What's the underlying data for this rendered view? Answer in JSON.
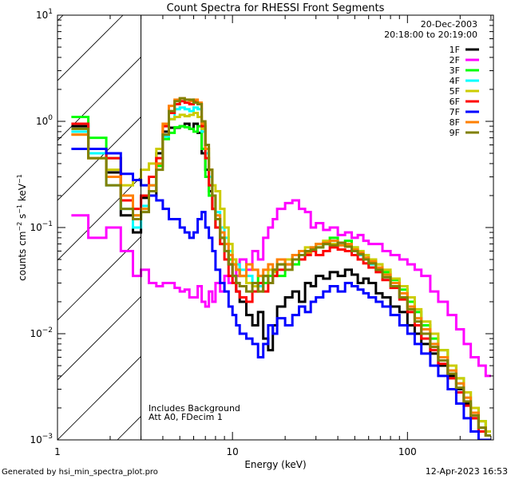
{
  "footer": {
    "generated_by": "Generated by hsi_min_spectra_plot.pro",
    "timestamp": "12-Apr-2023 16:53"
  },
  "chart_data": {
    "type": "line",
    "title": "Count Spectra for RHESSI Front Segments",
    "xlabel": "Energy (keV)",
    "ylabel": "counts cm^-2 s^-1 keV^-1",
    "xscale": "log",
    "yscale": "log",
    "xlim": [
      1,
      310
    ],
    "ylim": [
      0.001,
      10
    ],
    "x_tick_labels": [
      "1",
      "10",
      "100"
    ],
    "x_tick_values": [
      1,
      10,
      100
    ],
    "y_tick_labels": [
      {
        "base": "10",
        "exp": "1",
        "value": 10
      },
      {
        "base": "10",
        "exp": "0",
        "value": 1
      },
      {
        "base": "10",
        "exp": "−1",
        "value": 0.1
      },
      {
        "base": "10",
        "exp": "−2",
        "value": 0.01
      },
      {
        "base": "10",
        "exp": "−3",
        "value": 0.001
      }
    ],
    "ylabel_parts": {
      "a": "counts cm",
      "e1": "−2",
      "b": " s",
      "e2": "−1",
      "c": " keV",
      "e3": "−1"
    },
    "hatched_region": {
      "x_from": 1,
      "x_to": 3.0,
      "label": "excluded low-energy region"
    },
    "legend_placement": "top-right",
    "legend_header": [
      "20-Dec-2003",
      "20:18:00 to 20:19:00"
    ],
    "annotations": [
      "Includes Background",
      "Att A0, FDecim 1"
    ],
    "energy_edges": [
      1.2,
      1.5,
      1.9,
      2.3,
      2.7,
      3.0,
      3.33,
      3.67,
      4.0,
      4.33,
      4.67,
      5.0,
      5.33,
      5.67,
      6.0,
      6.33,
      6.67,
      7.0,
      7.33,
      7.67,
      8.0,
      8.5,
      9.0,
      9.5,
      10,
      10.5,
      11,
      12,
      13,
      14,
      15,
      16,
      17,
      18,
      20,
      22,
      24,
      26,
      28,
      30,
      33,
      36,
      40,
      44,
      48,
      52,
      56,
      60,
      66,
      72,
      80,
      90,
      100,
      110,
      120,
      135,
      150,
      170,
      190,
      210,
      230,
      255,
      280,
      300
    ],
    "series": [
      {
        "name": "1F",
        "color": "#000000",
        "values": [
          0.9,
          0.55,
          0.33,
          0.13,
          0.09,
          0.19,
          0.2,
          0.5,
          0.8,
          0.87,
          0.87,
          0.9,
          0.95,
          0.85,
          0.95,
          0.78,
          0.5,
          0.35,
          0.22,
          0.15,
          0.1,
          0.08,
          0.06,
          0.045,
          0.035,
          0.025,
          0.02,
          0.015,
          0.012,
          0.016,
          0.009,
          0.007,
          0.012,
          0.018,
          0.022,
          0.025,
          0.02,
          0.03,
          0.028,
          0.035,
          0.033,
          0.038,
          0.035,
          0.04,
          0.036,
          0.03,
          0.033,
          0.03,
          0.024,
          0.022,
          0.018,
          0.016,
          0.012,
          0.01,
          0.008,
          0.0065,
          0.005,
          0.004,
          0.003,
          0.0022,
          0.0016,
          0.0012,
          0.0012
        ]
      },
      {
        "name": "2F",
        "color": "#ff00ff",
        "values": [
          0.13,
          0.08,
          0.1,
          0.06,
          0.035,
          0.04,
          0.03,
          0.028,
          0.03,
          0.03,
          0.027,
          0.025,
          0.026,
          0.022,
          0.022,
          0.028,
          0.02,
          0.018,
          0.025,
          0.02,
          0.03,
          0.025,
          0.035,
          0.03,
          0.045,
          0.035,
          0.05,
          0.04,
          0.06,
          0.05,
          0.08,
          0.1,
          0.12,
          0.15,
          0.17,
          0.18,
          0.15,
          0.14,
          0.1,
          0.11,
          0.095,
          0.1,
          0.085,
          0.09,
          0.08,
          0.085,
          0.075,
          0.07,
          0.07,
          0.06,
          0.055,
          0.05,
          0.045,
          0.04,
          0.035,
          0.025,
          0.02,
          0.015,
          0.011,
          0.008,
          0.006,
          0.005,
          0.004
        ]
      },
      {
        "name": "3F",
        "color": "#00ff00",
        "values": [
          1.1,
          0.7,
          0.45,
          0.2,
          0.13,
          0.15,
          0.25,
          0.38,
          0.68,
          0.78,
          0.88,
          0.9,
          0.88,
          0.85,
          0.8,
          0.9,
          0.55,
          0.3,
          0.2,
          0.15,
          0.1,
          0.07,
          0.06,
          0.05,
          0.045,
          0.04,
          0.035,
          0.03,
          0.028,
          0.035,
          0.03,
          0.035,
          0.04,
          0.035,
          0.05,
          0.045,
          0.055,
          0.06,
          0.06,
          0.065,
          0.07,
          0.08,
          0.07,
          0.075,
          0.065,
          0.06,
          0.055,
          0.05,
          0.045,
          0.038,
          0.032,
          0.026,
          0.02,
          0.016,
          0.012,
          0.009,
          0.007,
          0.005,
          0.0038,
          0.0028,
          0.002,
          0.0015,
          0.0012
        ]
      },
      {
        "name": "4F",
        "color": "#00ffff",
        "values": [
          0.8,
          0.5,
          0.25,
          0.15,
          0.1,
          0.16,
          0.25,
          0.4,
          0.72,
          1.05,
          1.3,
          1.35,
          1.3,
          1.25,
          1.35,
          1.3,
          0.8,
          0.5,
          0.3,
          0.2,
          0.14,
          0.1,
          0.08,
          0.06,
          0.05,
          0.045,
          0.04,
          0.035,
          0.03,
          0.028,
          0.035,
          0.03,
          0.04,
          0.045,
          0.05,
          0.055,
          0.06,
          0.06,
          0.065,
          0.07,
          0.07,
          0.075,
          0.07,
          0.068,
          0.06,
          0.055,
          0.05,
          0.045,
          0.04,
          0.034,
          0.028,
          0.022,
          0.018,
          0.014,
          0.011,
          0.008,
          0.006,
          0.0045,
          0.0034,
          0.0025,
          0.0018,
          0.0013,
          0.0011
        ]
      },
      {
        "name": "5F",
        "color": "#cccc00",
        "values": [
          0.75,
          0.45,
          0.35,
          0.25,
          0.28,
          0.35,
          0.4,
          0.55,
          0.95,
          1.05,
          1.1,
          1.15,
          1.12,
          1.15,
          1.2,
          1.1,
          0.85,
          0.55,
          0.35,
          0.25,
          0.22,
          0.15,
          0.1,
          0.07,
          0.05,
          0.04,
          0.035,
          0.03,
          0.028,
          0.03,
          0.035,
          0.04,
          0.038,
          0.045,
          0.05,
          0.055,
          0.06,
          0.065,
          0.065,
          0.07,
          0.075,
          0.07,
          0.072,
          0.068,
          0.065,
          0.06,
          0.055,
          0.05,
          0.045,
          0.04,
          0.033,
          0.028,
          0.022,
          0.017,
          0.013,
          0.01,
          0.007,
          0.005,
          0.0038,
          0.0028,
          0.002,
          0.0015,
          0.0012
        ]
      },
      {
        "name": "6F",
        "color": "#ff0000",
        "values": [
          0.95,
          0.55,
          0.45,
          0.18,
          0.15,
          0.2,
          0.3,
          0.45,
          0.9,
          1.2,
          1.45,
          1.55,
          1.5,
          1.45,
          1.55,
          1.45,
          0.9,
          0.45,
          0.25,
          0.15,
          0.1,
          0.07,
          0.05,
          0.035,
          0.03,
          0.025,
          0.022,
          0.02,
          0.025,
          0.03,
          0.025,
          0.03,
          0.035,
          0.04,
          0.045,
          0.05,
          0.05,
          0.055,
          0.06,
          0.055,
          0.06,
          0.065,
          0.062,
          0.06,
          0.055,
          0.05,
          0.046,
          0.042,
          0.038,
          0.032,
          0.027,
          0.021,
          0.016,
          0.012,
          0.009,
          0.007,
          0.0052,
          0.0038,
          0.0028,
          0.0021,
          0.0016,
          0.0012,
          0.0011
        ]
      },
      {
        "name": "7F",
        "color": "#0000ff",
        "values": [
          0.55,
          0.55,
          0.5,
          0.32,
          0.28,
          0.25,
          0.2,
          0.18,
          0.15,
          0.12,
          0.12,
          0.1,
          0.09,
          0.08,
          0.09,
          0.12,
          0.14,
          0.1,
          0.08,
          0.06,
          0.04,
          0.03,
          0.025,
          0.018,
          0.015,
          0.012,
          0.01,
          0.009,
          0.008,
          0.006,
          0.008,
          0.012,
          0.01,
          0.014,
          0.012,
          0.015,
          0.018,
          0.016,
          0.02,
          0.022,
          0.025,
          0.028,
          0.025,
          0.03,
          0.028,
          0.026,
          0.024,
          0.022,
          0.02,
          0.018,
          0.015,
          0.012,
          0.01,
          0.008,
          0.0065,
          0.005,
          0.004,
          0.003,
          0.0022,
          0.0016,
          0.0012,
          0.001,
          0.001
        ]
      },
      {
        "name": "8F",
        "color": "#ff8000",
        "values": [
          0.75,
          0.45,
          0.3,
          0.2,
          0.13,
          0.15,
          0.25,
          0.4,
          0.95,
          1.4,
          1.6,
          1.65,
          1.6,
          1.55,
          1.6,
          1.5,
          0.95,
          0.55,
          0.35,
          0.2,
          0.13,
          0.09,
          0.07,
          0.055,
          0.045,
          0.04,
          0.035,
          0.045,
          0.04,
          0.035,
          0.04,
          0.045,
          0.04,
          0.05,
          0.045,
          0.055,
          0.06,
          0.058,
          0.065,
          0.07,
          0.072,
          0.075,
          0.068,
          0.07,
          0.062,
          0.058,
          0.052,
          0.048,
          0.042,
          0.036,
          0.03,
          0.024,
          0.018,
          0.014,
          0.011,
          0.008,
          0.006,
          0.0045,
          0.0034,
          0.0025,
          0.0018,
          0.0013,
          0.0011
        ]
      },
      {
        "name": "9F",
        "color": "#808000",
        "values": [
          0.85,
          0.45,
          0.25,
          0.15,
          0.12,
          0.14,
          0.22,
          0.35,
          0.75,
          1.25,
          1.55,
          1.65,
          1.6,
          1.6,
          1.5,
          1.45,
          1.0,
          0.6,
          0.35,
          0.2,
          0.12,
          0.08,
          0.06,
          0.045,
          0.035,
          0.03,
          0.028,
          0.025,
          0.03,
          0.025,
          0.035,
          0.03,
          0.04,
          0.045,
          0.04,
          0.05,
          0.055,
          0.06,
          0.062,
          0.065,
          0.07,
          0.068,
          0.072,
          0.066,
          0.06,
          0.056,
          0.05,
          0.046,
          0.04,
          0.034,
          0.028,
          0.022,
          0.017,
          0.013,
          0.01,
          0.0075,
          0.0056,
          0.0042,
          0.0031,
          0.0023,
          0.0017,
          0.0013,
          0.0011
        ]
      }
    ]
  }
}
